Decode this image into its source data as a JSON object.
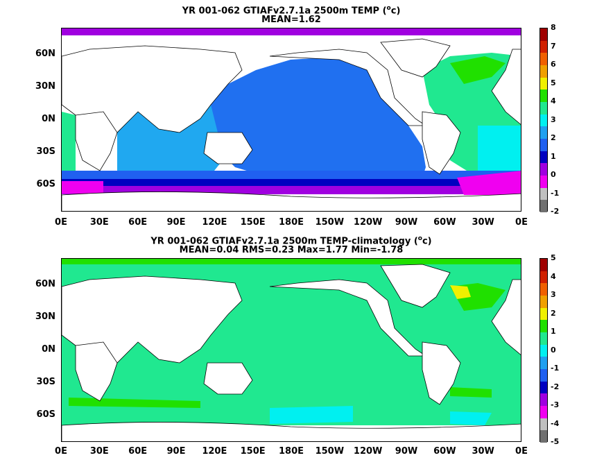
{
  "panels": [
    {
      "title_line1": "YR 001-062 GTIAFv2.7.1a 2500m TEMP (",
      "title_sup": "o",
      "title_line1_end": "c)",
      "title_line2": "MEAN=1.62",
      "colorbar": {
        "ticks": [
          "8",
          "7",
          "6",
          "5",
          "4",
          "3",
          "2",
          "1",
          "0",
          "-1",
          "-2"
        ],
        "colors": [
          "#a00000",
          "#d02000",
          "#f06000",
          "#f0a000",
          "#f0f000",
          "#20e000",
          "#20e890",
          "#00f0f0",
          "#20a0f0",
          "#2060f0",
          "#0000c0",
          "#a000e0",
          "#f000f0",
          "#c0c0c0",
          "#707070"
        ]
      }
    },
    {
      "title_line1": "YR 001-062 GTIAFv2.7.1a 2500m TEMP-climatology (",
      "title_sup": "o",
      "title_line1_end": "c)",
      "title_line2": "MEAN=0.04   RMS=0.23   Max=1.77   Min=-1.78",
      "colorbar": {
        "ticks": [
          "5",
          "4",
          "3",
          "2",
          "1",
          "0",
          "-1",
          "-2",
          "-3",
          "-4",
          "-5"
        ],
        "colors": [
          "#a00000",
          "#d02000",
          "#f06000",
          "#f0a000",
          "#f0f000",
          "#20e000",
          "#20e890",
          "#00f0f0",
          "#20a0f0",
          "#2060f0",
          "#0000c0",
          "#a000e0",
          "#f000f0",
          "#c0c0c0",
          "#707070"
        ]
      }
    }
  ],
  "lat_labels": [
    "60N",
    "30N",
    "0N",
    "30S",
    "60S"
  ],
  "lon_labels": [
    "0E",
    "30E",
    "60E",
    "90E",
    "120E",
    "150E",
    "180E",
    "150W",
    "120W",
    "90W",
    "60W",
    "30W",
    "0E"
  ]
}
